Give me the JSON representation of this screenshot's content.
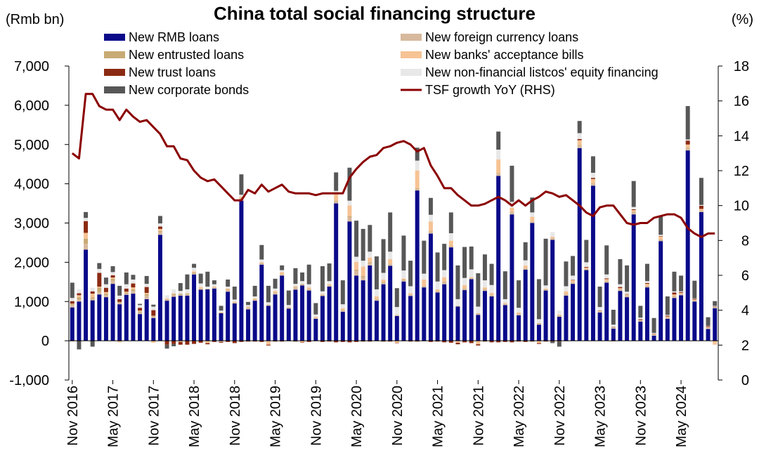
{
  "chart_data": {
    "type": "bar",
    "title": "China total social financing structure",
    "ylabel_left": "(Rmb bn)",
    "ylabel_right": "(%)",
    "ylim_left": [
      -1000,
      7000
    ],
    "ylim_right": [
      0,
      18
    ],
    "left_ticks": [
      "7,000",
      "6,000",
      "5,000",
      "4,000",
      "3,000",
      "2,000",
      "1,000",
      "0",
      "-1,000"
    ],
    "left_tick_values": [
      7000,
      6000,
      5000,
      4000,
      3000,
      2000,
      1000,
      0,
      -1000
    ],
    "right_ticks": [
      "18",
      "16",
      "14",
      "12",
      "10",
      "8",
      "6",
      "4",
      "2",
      "0"
    ],
    "right_tick_values": [
      18,
      16,
      14,
      12,
      10,
      8,
      6,
      4,
      2,
      0
    ],
    "negative_tick_color": "#e41a1c",
    "x_tick_labels": [
      "Nov 2016",
      "May 2017",
      "Nov 2017",
      "May 2018",
      "Nov 2018",
      "May 2019",
      "Nov 2019",
      "May 2020",
      "Nov 2020",
      "May 2021",
      "Nov 2021",
      "May 2022",
      "Nov 2022",
      "May 2023",
      "Nov 2023",
      "May 2024"
    ],
    "x_tick_indices": [
      0,
      6,
      12,
      18,
      24,
      30,
      36,
      42,
      48,
      54,
      60,
      66,
      72,
      78,
      84,
      90
    ],
    "legend": [
      {
        "name": "New RMB loans",
        "color": "#0a0a8a",
        "kind": "box"
      },
      {
        "name": "New foreign currency loans",
        "color": "#d7b99d",
        "kind": "box"
      },
      {
        "name": "New entrusted loans",
        "color": "#c8aa74",
        "kind": "box"
      },
      {
        "name": "New banks' acceptance bills",
        "color": "#f6c394",
        "kind": "box"
      },
      {
        "name": "New trust loans",
        "color": "#8b2a12",
        "kind": "box"
      },
      {
        "name": "New non-financial listcos' equity financing",
        "color": "#e8e8e8",
        "kind": "box"
      },
      {
        "name": "New corporate bonds",
        "color": "#575757",
        "kind": "box"
      },
      {
        "name": "TSF growth YoY (RHS)",
        "color": "#8b0000",
        "kind": "line"
      }
    ],
    "series": [
      {
        "name": "New RMB loans",
        "color": "#0a0a8a",
        "values": [
          850,
          1000,
          2320,
          1030,
          1180,
          1110,
          1450,
          930,
          1170,
          1200,
          680,
          1060,
          580,
          2700,
          1020,
          1120,
          1150,
          1150,
          1690,
          1300,
          1310,
          1330,
          700,
          1250,
          950,
          3570,
          800,
          1020,
          1940,
          890,
          1180,
          1660,
          820,
          1300,
          1410,
          1280,
          560,
          1140,
          1380,
          3500,
          740,
          3040,
          1660,
          1540,
          1920,
          1020,
          1440,
          1910,
          630,
          1510,
          1140,
          3830,
          1360,
          2730,
          1230,
          1440,
          2380,
          870,
          1290,
          1570,
          660,
          1270,
          1130,
          4200,
          910,
          3220,
          650,
          1810,
          3000,
          410,
          1280,
          2570,
          610,
          1150,
          1450,
          4910,
          1800,
          3950,
          720,
          1480,
          310,
          1270,
          1110,
          3220,
          490,
          1360,
          130,
          2540,
          560,
          1090,
          1160,
          4850,
          1000,
          3280,
          300,
          830
        ]
      },
      {
        "name": "New foreign currency loans",
        "color": "#d7b99d",
        "values": [
          60,
          50,
          150,
          40,
          60,
          50,
          80,
          40,
          30,
          70,
          40,
          90,
          40,
          70,
          30,
          40,
          20,
          30,
          30,
          20,
          -10,
          20,
          -30,
          40,
          20,
          50,
          30,
          20,
          30,
          20,
          40,
          20,
          20,
          60,
          30,
          30,
          20,
          20,
          20,
          50,
          30,
          100,
          120,
          80,
          60,
          40,
          40,
          40,
          20,
          30,
          30,
          40,
          30,
          40,
          30,
          50,
          20,
          10,
          40,
          20,
          30,
          40,
          40,
          60,
          20,
          60,
          30,
          40,
          30,
          30,
          20,
          40,
          30,
          40,
          40,
          60,
          20,
          50,
          20,
          40,
          20,
          30,
          40,
          50,
          20,
          30,
          20,
          30,
          30,
          40,
          20,
          50,
          20,
          30,
          20,
          20
        ]
      },
      {
        "name": "New entrusted loans",
        "color": "#c8aa74",
        "values": [
          40,
          60,
          130,
          40,
          120,
          40,
          50,
          20,
          20,
          40,
          30,
          40,
          20,
          30,
          10,
          30,
          30,
          20,
          20,
          10,
          10,
          10,
          10,
          10,
          10,
          20,
          10,
          10,
          10,
          10,
          10,
          10,
          10,
          10,
          10,
          10,
          10,
          10,
          10,
          20,
          10,
          30,
          30,
          30,
          20,
          10,
          20,
          10,
          10,
          20,
          10,
          20,
          10,
          20,
          10,
          20,
          10,
          10,
          10,
          10,
          10,
          10,
          10,
          10,
          10,
          10,
          10,
          10,
          10,
          10,
          10,
          10,
          10,
          10,
          10,
          20,
          10,
          10,
          10,
          10,
          10,
          10,
          10,
          20,
          10,
          10,
          10,
          10,
          10,
          10,
          10,
          20,
          10,
          10,
          10,
          10
        ]
      },
      {
        "name": "New banks' acceptance bills",
        "color": "#f6c394",
        "values": [
          -20,
          50,
          150,
          90,
          20,
          40,
          30,
          -40,
          30,
          50,
          20,
          30,
          -50,
          50,
          20,
          20,
          -30,
          10,
          30,
          40,
          -50,
          20,
          20,
          30,
          20,
          30,
          30,
          30,
          20,
          -100,
          40,
          60,
          10,
          20,
          -40,
          40,
          20,
          20,
          30,
          160,
          50,
          280,
          200,
          240,
          120,
          60,
          60,
          120,
          -50,
          30,
          30,
          450,
          160,
          250,
          40,
          110,
          140,
          -50,
          80,
          20,
          -90,
          40,
          40,
          350,
          20,
          100,
          30,
          60,
          120,
          -60,
          20,
          30,
          20,
          60,
          40,
          120,
          30,
          110,
          10,
          40,
          -20,
          30,
          20,
          40,
          10,
          50,
          10,
          80,
          20,
          40,
          30,
          80,
          20,
          40,
          20,
          -100
        ]
      },
      {
        "name": "New trust loans",
        "color": "#8b2a12",
        "values": [
          60,
          50,
          300,
          60,
          350,
          110,
          60,
          70,
          80,
          100,
          70,
          150,
          140,
          60,
          -100,
          -80,
          -70,
          -100,
          -80,
          -50,
          -30,
          -30,
          -20,
          -30,
          -60,
          -30,
          -20,
          -20,
          -30,
          -20,
          -20,
          -20,
          -10,
          -20,
          -10,
          -30,
          -10,
          -30,
          -20,
          -40,
          -30,
          -40,
          -30,
          -20,
          -20,
          -10,
          -20,
          -20,
          -10,
          -10,
          -20,
          -20,
          -10,
          -30,
          -20,
          -40,
          -50,
          -40,
          -40,
          -60,
          -30,
          -20,
          -40,
          -40,
          -30,
          -40,
          -20,
          -30,
          -20,
          -20,
          -20,
          -20,
          -20,
          -10,
          10,
          30,
          20,
          30,
          10,
          20,
          10,
          30,
          10,
          20,
          20,
          20,
          10,
          10,
          20,
          50,
          20,
          100,
          20,
          80,
          20,
          10
        ]
      },
      {
        "name": "New non-financial listcos' equity financing",
        "color": "#e8e8e8",
        "values": [
          80,
          100,
          80,
          90,
          100,
          90,
          80,
          90,
          110,
          100,
          70,
          80,
          90,
          80,
          80,
          100,
          70,
          100,
          90,
          90,
          60,
          60,
          40,
          50,
          50,
          50,
          40,
          50,
          70,
          60,
          60,
          50,
          50,
          60,
          70,
          80,
          60,
          70,
          80,
          90,
          100,
          120,
          130,
          150,
          150,
          180,
          170,
          190,
          200,
          200,
          180,
          250,
          150,
          170,
          200,
          180,
          190,
          170,
          180,
          200,
          170,
          180,
          200,
          250,
          100,
          150,
          120,
          130,
          110,
          100,
          80,
          120,
          100,
          130,
          110,
          150,
          120,
          130,
          90,
          100,
          60,
          70,
          60,
          60,
          40,
          50,
          20,
          30,
          20,
          30,
          20,
          30,
          10,
          20,
          10,
          20
        ]
      },
      {
        "name": "New corporate bonds",
        "color": "#575757",
        "values": [
          390,
          -220,
          150,
          -150,
          150,
          170,
          150,
          250,
          300,
          120,
          30,
          200,
          50,
          190,
          -100,
          -60,
          200,
          380,
          100,
          250,
          380,
          100,
          120,
          180,
          330,
          520,
          80,
          270,
          370,
          420,
          250,
          120,
          370,
          400,
          220,
          500,
          290,
          640,
          450,
          470,
          610,
          840,
          920,
          810,
          680,
          840,
          860,
          1000,
          480,
          890,
          650,
          330,
          840,
          430,
          740,
          670,
          530,
          860,
          790,
          580,
          850,
          660,
          540,
          460,
          710,
          920,
          700,
          460,
          380,
          1020,
          1190,
          -40,
          -130,
          630,
          500,
          310,
          570,
          420,
          520,
          740,
          380,
          640,
          670,
          660,
          300,
          440,
          380,
          480,
          470,
          500,
          400,
          850,
          450,
          690,
          220,
          120
        ]
      }
    ],
    "line": {
      "name": "TSF growth YoY (RHS)",
      "color": "#8b0000",
      "values": [
        13.0,
        12.7,
        16.4,
        16.4,
        15.7,
        15.5,
        15.5,
        14.9,
        15.5,
        15.1,
        14.8,
        14.9,
        14.5,
        14.1,
        13.4,
        13.4,
        12.7,
        12.6,
        12.0,
        11.6,
        11.4,
        11.5,
        11.1,
        10.7,
        10.3,
        10.3,
        10.9,
        10.7,
        11.2,
        10.8,
        11.0,
        11.2,
        10.8,
        10.7,
        10.7,
        10.7,
        10.6,
        10.7,
        10.7,
        10.7,
        10.7,
        11.6,
        12.1,
        12.5,
        12.8,
        12.9,
        13.3,
        13.4,
        13.6,
        13.7,
        13.5,
        13.1,
        13.3,
        12.3,
        11.7,
        11.0,
        11.0,
        10.6,
        10.3,
        10.0,
        10.0,
        10.1,
        10.3,
        10.5,
        10.3,
        10.0,
        10.3,
        10.0,
        10.3,
        10.5,
        10.8,
        10.7,
        10.5,
        10.6,
        10.3,
        10.0,
        9.6,
        9.4,
        9.9,
        10.0,
        10.0,
        9.5,
        9.0,
        8.9,
        9.0,
        9.0,
        9.3,
        9.4,
        9.5,
        9.5,
        9.3,
        8.7,
        8.4,
        8.2,
        8.4,
        8.4
      ]
    }
  }
}
